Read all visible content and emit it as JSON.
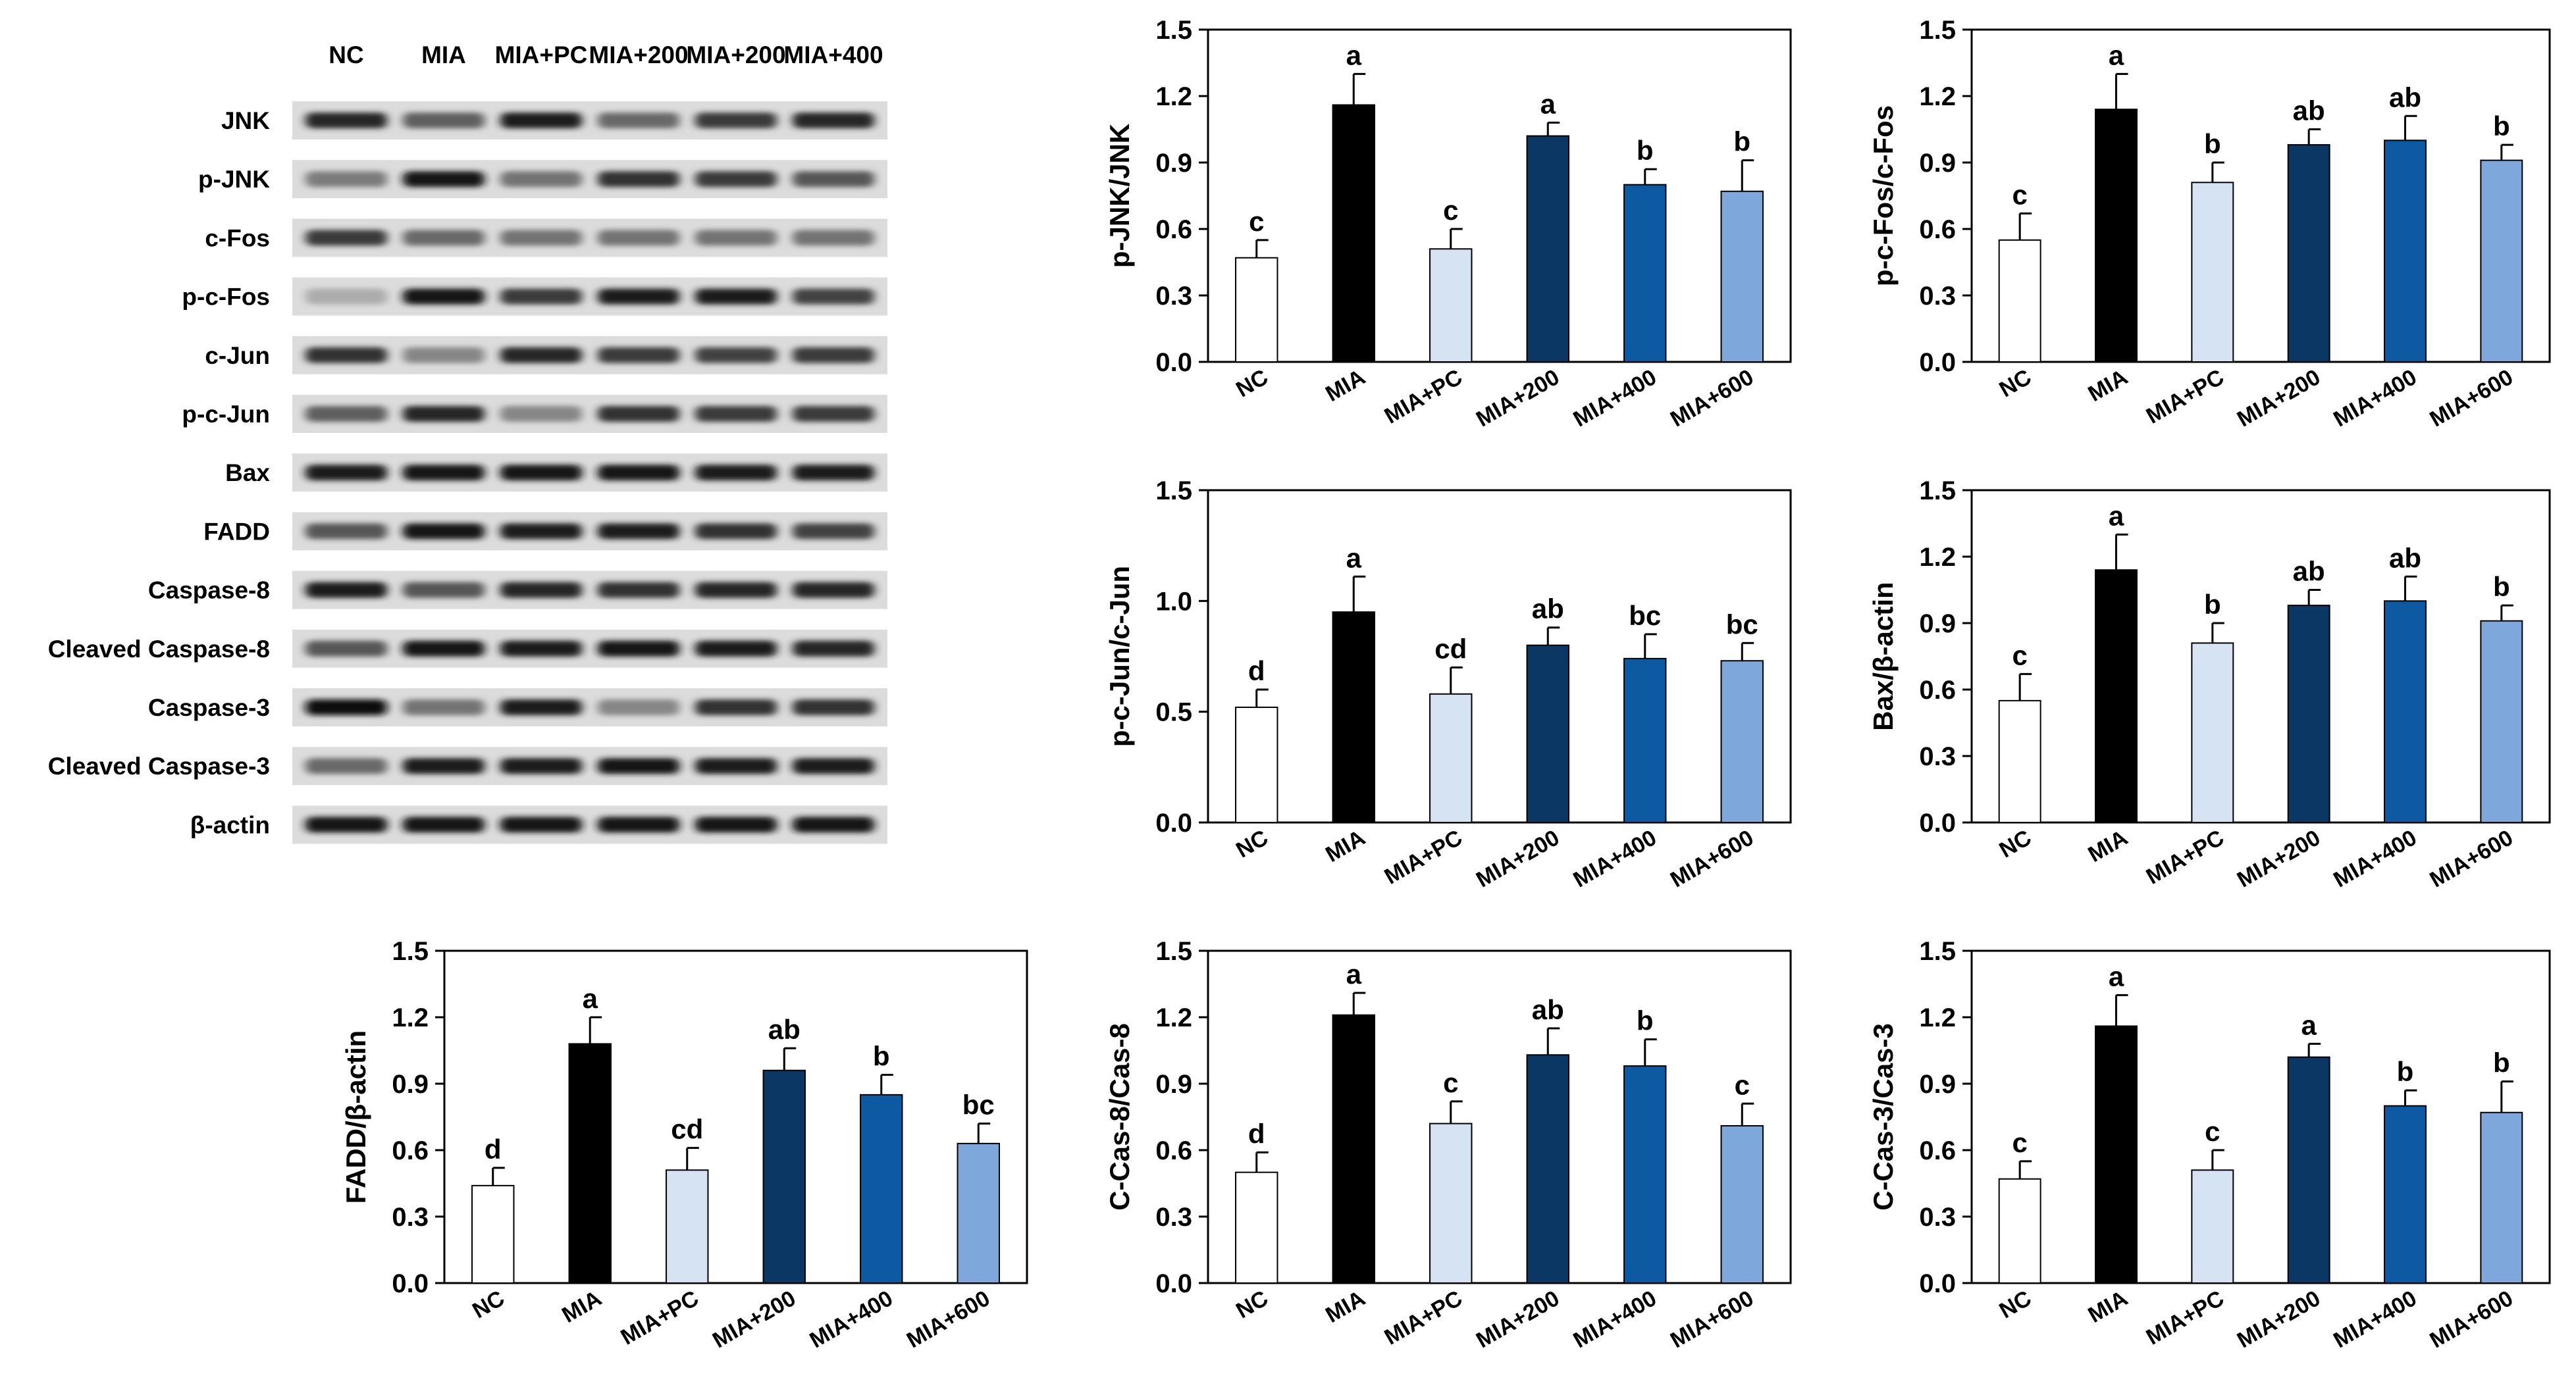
{
  "palette": {
    "NC": "#ffffff",
    "MIA": "#000000",
    "MIA+PC": "#d6e3f3",
    "MIA+200": "#0b3764",
    "MIA+400": "#0d5aa3",
    "MIA+600": "#7ea8dc",
    "axis": "#000000"
  },
  "blot": {
    "lane_labels": [
      "NC",
      "MIA",
      "MIA+PC",
      "MIA+200",
      "MIA+200",
      "MIA+400"
    ],
    "rows": [
      {
        "label": "JNK",
        "intensity": [
          0.85,
          0.55,
          0.9,
          0.5,
          0.75,
          0.85
        ]
      },
      {
        "label": "p-JNK",
        "intensity": [
          0.4,
          0.95,
          0.45,
          0.8,
          0.75,
          0.6
        ]
      },
      {
        "label": "c-Fos",
        "intensity": [
          0.75,
          0.5,
          0.45,
          0.45,
          0.45,
          0.45
        ]
      },
      {
        "label": "p-c-Fos",
        "intensity": [
          0.15,
          0.95,
          0.75,
          0.9,
          0.9,
          0.7
        ]
      },
      {
        "label": "c-Jun",
        "intensity": [
          0.8,
          0.35,
          0.85,
          0.75,
          0.7,
          0.75
        ]
      },
      {
        "label": "p-c-Jun",
        "intensity": [
          0.55,
          0.85,
          0.35,
          0.8,
          0.75,
          0.75
        ]
      },
      {
        "label": "Bax",
        "intensity": [
          0.9,
          0.95,
          0.95,
          0.95,
          0.9,
          0.9
        ]
      },
      {
        "label": "FADD",
        "intensity": [
          0.6,
          0.95,
          0.9,
          0.9,
          0.8,
          0.7
        ]
      },
      {
        "label": "Caspase-8",
        "intensity": [
          0.9,
          0.6,
          0.85,
          0.8,
          0.85,
          0.85
        ]
      },
      {
        "label": "Cleaved Caspase-8",
        "intensity": [
          0.6,
          0.95,
          0.9,
          0.95,
          0.9,
          0.85
        ]
      },
      {
        "label": "Caspase-3",
        "intensity": [
          0.98,
          0.45,
          0.9,
          0.35,
          0.8,
          0.8
        ]
      },
      {
        "label": "Cleaved Caspase-3",
        "intensity": [
          0.5,
          0.9,
          0.9,
          0.95,
          0.9,
          0.9
        ]
      },
      {
        "label": "β-actin",
        "intensity": [
          0.95,
          0.95,
          0.95,
          0.95,
          0.95,
          0.95
        ]
      }
    ]
  },
  "chart_data": [
    {
      "type": "bar",
      "ylabel": "p-JNK/JNK",
      "categories": [
        "NC",
        "MIA",
        "MIA+PC",
        "MIA+200",
        "MIA+400",
        "MIA+600"
      ],
      "values": [
        0.47,
        1.16,
        0.51,
        1.02,
        0.8,
        0.77
      ],
      "errors": [
        0.08,
        0.14,
        0.09,
        0.06,
        0.07,
        0.14
      ],
      "letters": [
        "c",
        "a",
        "c",
        "a",
        "b",
        "b"
      ],
      "ylim": [
        0,
        1.5
      ],
      "yticks": [
        "0.0",
        "0.3",
        "0.6",
        "0.9",
        "1.2",
        "1.5"
      ]
    },
    {
      "type": "bar",
      "ylabel": "p-c-Fos/c-Fos",
      "categories": [
        "NC",
        "MIA",
        "MIA+PC",
        "MIA+200",
        "MIA+400",
        "MIA+600"
      ],
      "values": [
        0.55,
        1.14,
        0.81,
        0.98,
        1.0,
        0.91
      ],
      "errors": [
        0.12,
        0.16,
        0.09,
        0.07,
        0.11,
        0.07
      ],
      "letters": [
        "c",
        "a",
        "b",
        "ab",
        "ab",
        "b"
      ],
      "ylim": [
        0,
        1.5
      ],
      "yticks": [
        "0.0",
        "0.3",
        "0.6",
        "0.9",
        "1.2",
        "1.5"
      ]
    },
    {
      "type": "bar",
      "ylabel": "p-c-Jun/c-Jun",
      "categories": [
        "NC",
        "MIA",
        "MIA+PC",
        "MIA+200",
        "MIA+400",
        "MIA+600"
      ],
      "values": [
        0.52,
        0.95,
        0.58,
        0.8,
        0.74,
        0.73
      ],
      "errors": [
        0.08,
        0.16,
        0.12,
        0.08,
        0.11,
        0.08
      ],
      "letters": [
        "d",
        "a",
        "cd",
        "ab",
        "bc",
        "bc"
      ],
      "ylim": [
        0,
        1.5
      ],
      "yticks": [
        "0.0",
        "0.5",
        "1.0",
        "1.5"
      ]
    },
    {
      "type": "bar",
      "ylabel": "Bax/β-actin",
      "categories": [
        "NC",
        "MIA",
        "MIA+PC",
        "MIA+200",
        "MIA+400",
        "MIA+600"
      ],
      "values": [
        0.55,
        1.14,
        0.81,
        0.98,
        1.0,
        0.91
      ],
      "errors": [
        0.12,
        0.16,
        0.09,
        0.07,
        0.11,
        0.07
      ],
      "letters": [
        "c",
        "a",
        "b",
        "ab",
        "ab",
        "b"
      ],
      "ylim": [
        0,
        1.5
      ],
      "yticks": [
        "0.0",
        "0.3",
        "0.6",
        "0.9",
        "1.2",
        "1.5"
      ]
    },
    {
      "type": "bar",
      "ylabel": "FADD/β-actin",
      "categories": [
        "NC",
        "MIA",
        "MIA+PC",
        "MIA+200",
        "MIA+400",
        "MIA+600"
      ],
      "values": [
        0.44,
        1.08,
        0.51,
        0.96,
        0.85,
        0.63
      ],
      "errors": [
        0.08,
        0.12,
        0.1,
        0.1,
        0.09,
        0.09
      ],
      "letters": [
        "d",
        "a",
        "cd",
        "ab",
        "b",
        "bc"
      ],
      "ylim": [
        0,
        1.5
      ],
      "yticks": [
        "0.0",
        "0.3",
        "0.6",
        "0.9",
        "1.2",
        "1.5"
      ]
    },
    {
      "type": "bar",
      "ylabel": "C-Cas-8/Cas-8",
      "categories": [
        "NC",
        "MIA",
        "MIA+PC",
        "MIA+200",
        "MIA+400",
        "MIA+600"
      ],
      "values": [
        0.5,
        1.21,
        0.72,
        1.03,
        0.98,
        0.71
      ],
      "errors": [
        0.09,
        0.1,
        0.1,
        0.12,
        0.12,
        0.1
      ],
      "letters": [
        "d",
        "a",
        "c",
        "ab",
        "b",
        "c"
      ],
      "ylim": [
        0,
        1.5
      ],
      "yticks": [
        "0.0",
        "0.3",
        "0.6",
        "0.9",
        "1.2",
        "1.5"
      ]
    },
    {
      "type": "bar",
      "ylabel": "C-Cas-3/Cas-3",
      "categories": [
        "NC",
        "MIA",
        "MIA+PC",
        "MIA+200",
        "MIA+400",
        "MIA+600"
      ],
      "values": [
        0.47,
        1.16,
        0.51,
        1.02,
        0.8,
        0.77
      ],
      "errors": [
        0.08,
        0.14,
        0.09,
        0.06,
        0.07,
        0.14
      ],
      "letters": [
        "c",
        "a",
        "c",
        "a",
        "b",
        "b"
      ],
      "ylim": [
        0,
        1.5
      ],
      "yticks": [
        "0.0",
        "0.3",
        "0.6",
        "0.9",
        "1.2",
        "1.5"
      ]
    }
  ]
}
